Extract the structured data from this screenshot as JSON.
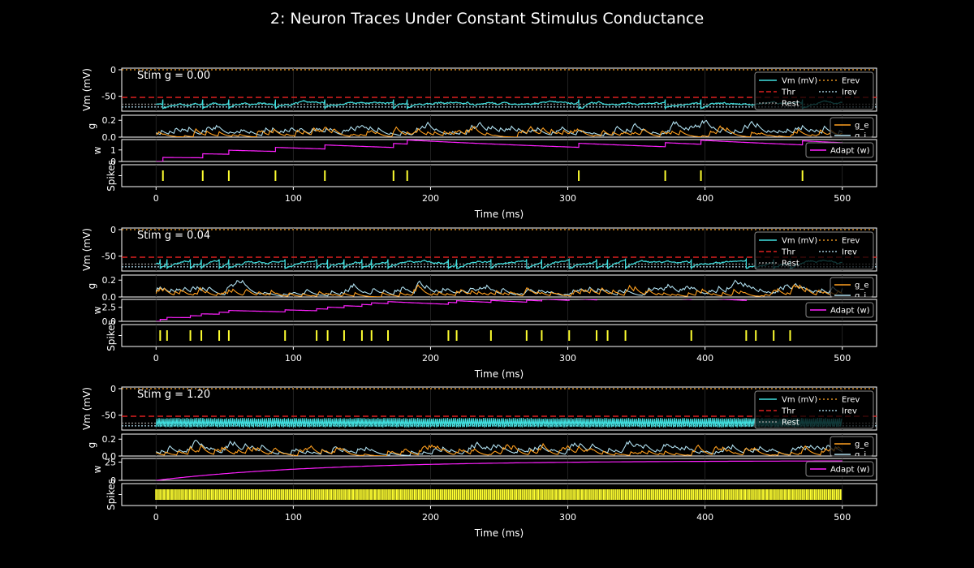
{
  "chart_data": {
    "type": "line",
    "title": "2: Neuron Traces Under Constant Stimulus Conductance",
    "xlabel": "Time (ms)",
    "xlim": [
      -25,
      525
    ],
    "xticks": [
      0,
      100,
      200,
      300,
      400,
      500
    ],
    "xtick_labels": [
      "0",
      "100",
      "200",
      "300",
      "400",
      "500"
    ],
    "colors": {
      "vm": "#40e0e0",
      "thr": "#dd2020",
      "rest": "#8a8a8a",
      "erev": "#e09020",
      "irev": "#a0c8d8",
      "ge": "#ffa020",
      "gi": "#b0e0f0",
      "w": "#ff20ff",
      "spikes": "#ffff30"
    },
    "rows": [
      {
        "stim_label": "Stim g = 0.00",
        "vm_ylabel": "Vm (mV)",
        "vm_ylim": [
          -78,
          3
        ],
        "vm_yticks": [
          0,
          -50
        ],
        "threshold": -52,
        "rest": -65,
        "erev": 0,
        "irev": -70,
        "g_ylabel": "g",
        "g_ylim": [
          0,
          0.26
        ],
        "g_yticks": [
          0,
          0.2
        ],
        "g_ytick_labels": [
          "0.0",
          "0.2"
        ],
        "w_ylabel": "w",
        "w_ylim": [
          0,
          1.9
        ],
        "w_yticks": [
          0,
          1
        ],
        "spike_ylabel": "Spikes",
        "spikes": [
          5,
          34,
          53,
          87,
          123,
          173,
          183,
          308,
          371,
          397,
          471
        ],
        "w_increment": 0.35,
        "w_tau": 300
      },
      {
        "stim_label": "Stim g = 0.04",
        "vm_ylabel": "Vm (mV)",
        "vm_ylim": [
          -78,
          3
        ],
        "vm_yticks": [
          0,
          -50
        ],
        "threshold": -52,
        "rest": -65,
        "erev": 0,
        "irev": -70,
        "g_ylabel": "g",
        "g_ylim": [
          0,
          0.26
        ],
        "g_yticks": [
          0,
          0.2
        ],
        "g_ytick_labels": [
          "0.0",
          "0.2"
        ],
        "w_ylabel": "w",
        "w_ylim": [
          0,
          3.9
        ],
        "w_yticks": [
          0,
          2.5
        ],
        "w_ytick_labels": [
          "0.0",
          "2.5"
        ],
        "spike_ylabel": "Spikes",
        "spikes": [
          3,
          8,
          25,
          33,
          46,
          53,
          94,
          117,
          125,
          137,
          150,
          157,
          169,
          213,
          219,
          244,
          270,
          281,
          301,
          321,
          329,
          342,
          390,
          430,
          437,
          450,
          462
        ],
        "w_increment": 0.35,
        "w_tau": 300
      },
      {
        "stim_label": "Stim g = 1.20",
        "vm_ylabel": "Vm (mV)",
        "vm_ylim": [
          -78,
          3
        ],
        "vm_yticks": [
          0,
          -50
        ],
        "threshold": -52,
        "rest": -65,
        "erev": 0,
        "irev": -70,
        "g_ylabel": "g",
        "g_ylim": [
          0,
          0.26
        ],
        "g_yticks": [
          0,
          0.2
        ],
        "g_ytick_labels": [
          "0.0",
          "0.2"
        ],
        "w_ylabel": "w",
        "w_ylim": [
          0,
          30
        ],
        "w_yticks": [
          0,
          25
        ],
        "spike_ylabel": "Spikes",
        "spike_period": 1.45,
        "w_saturation": 27,
        "w_rise_tau": 120
      }
    ],
    "legend_vm": [
      "Vm (mV)",
      "Thr",
      "Rest",
      "Erev",
      "Irev"
    ],
    "legend_g": [
      "g_e",
      "g_i"
    ],
    "legend_w": [
      "Adapt (w)"
    ]
  }
}
